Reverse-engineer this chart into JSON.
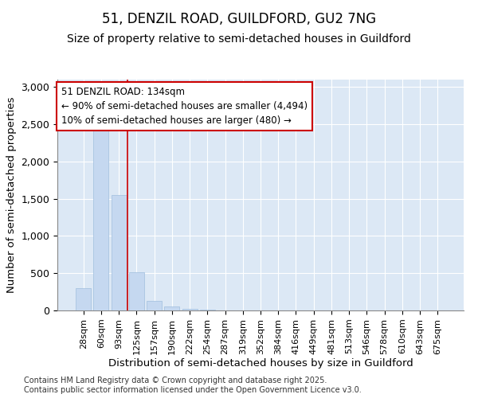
{
  "title": "51, DENZIL ROAD, GUILDFORD, GU2 7NG",
  "subtitle": "Size of property relative to semi-detached houses in Guildford",
  "xlabel": "Distribution of semi-detached houses by size in Guildford",
  "ylabel": "Number of semi-detached properties",
  "categories": [
    "28sqm",
    "60sqm",
    "93sqm",
    "125sqm",
    "157sqm",
    "190sqm",
    "222sqm",
    "254sqm",
    "287sqm",
    "319sqm",
    "352sqm",
    "384sqm",
    "416sqm",
    "449sqm",
    "481sqm",
    "513sqm",
    "546sqm",
    "578sqm",
    "610sqm",
    "643sqm",
    "675sqm"
  ],
  "values": [
    300,
    2450,
    1550,
    510,
    130,
    50,
    25,
    10,
    0,
    0,
    0,
    0,
    0,
    0,
    0,
    0,
    0,
    0,
    0,
    0,
    0
  ],
  "bar_color": "#c5d8f0",
  "bar_edge_color": "#a0bedd",
  "property_line_x": 2.5,
  "property_line_color": "#cc0000",
  "annotation_text": "51 DENZIL ROAD: 134sqm\n← 90% of semi-detached houses are smaller (4,494)\n10% of semi-detached houses are larger (480) →",
  "annotation_box_color": "#cc0000",
  "ylim": [
    0,
    3100
  ],
  "yticks": [
    0,
    500,
    1000,
    1500,
    2000,
    2500,
    3000
  ],
  "footer": "Contains HM Land Registry data © Crown copyright and database right 2025.\nContains public sector information licensed under the Open Government Licence v3.0.",
  "background_color": "#dce8f5",
  "grid_color": "#ffffff",
  "title_fontsize": 12,
  "subtitle_fontsize": 10,
  "axis_label_fontsize": 9.5,
  "tick_fontsize": 8,
  "footer_fontsize": 7,
  "annotation_fontsize": 8.5
}
